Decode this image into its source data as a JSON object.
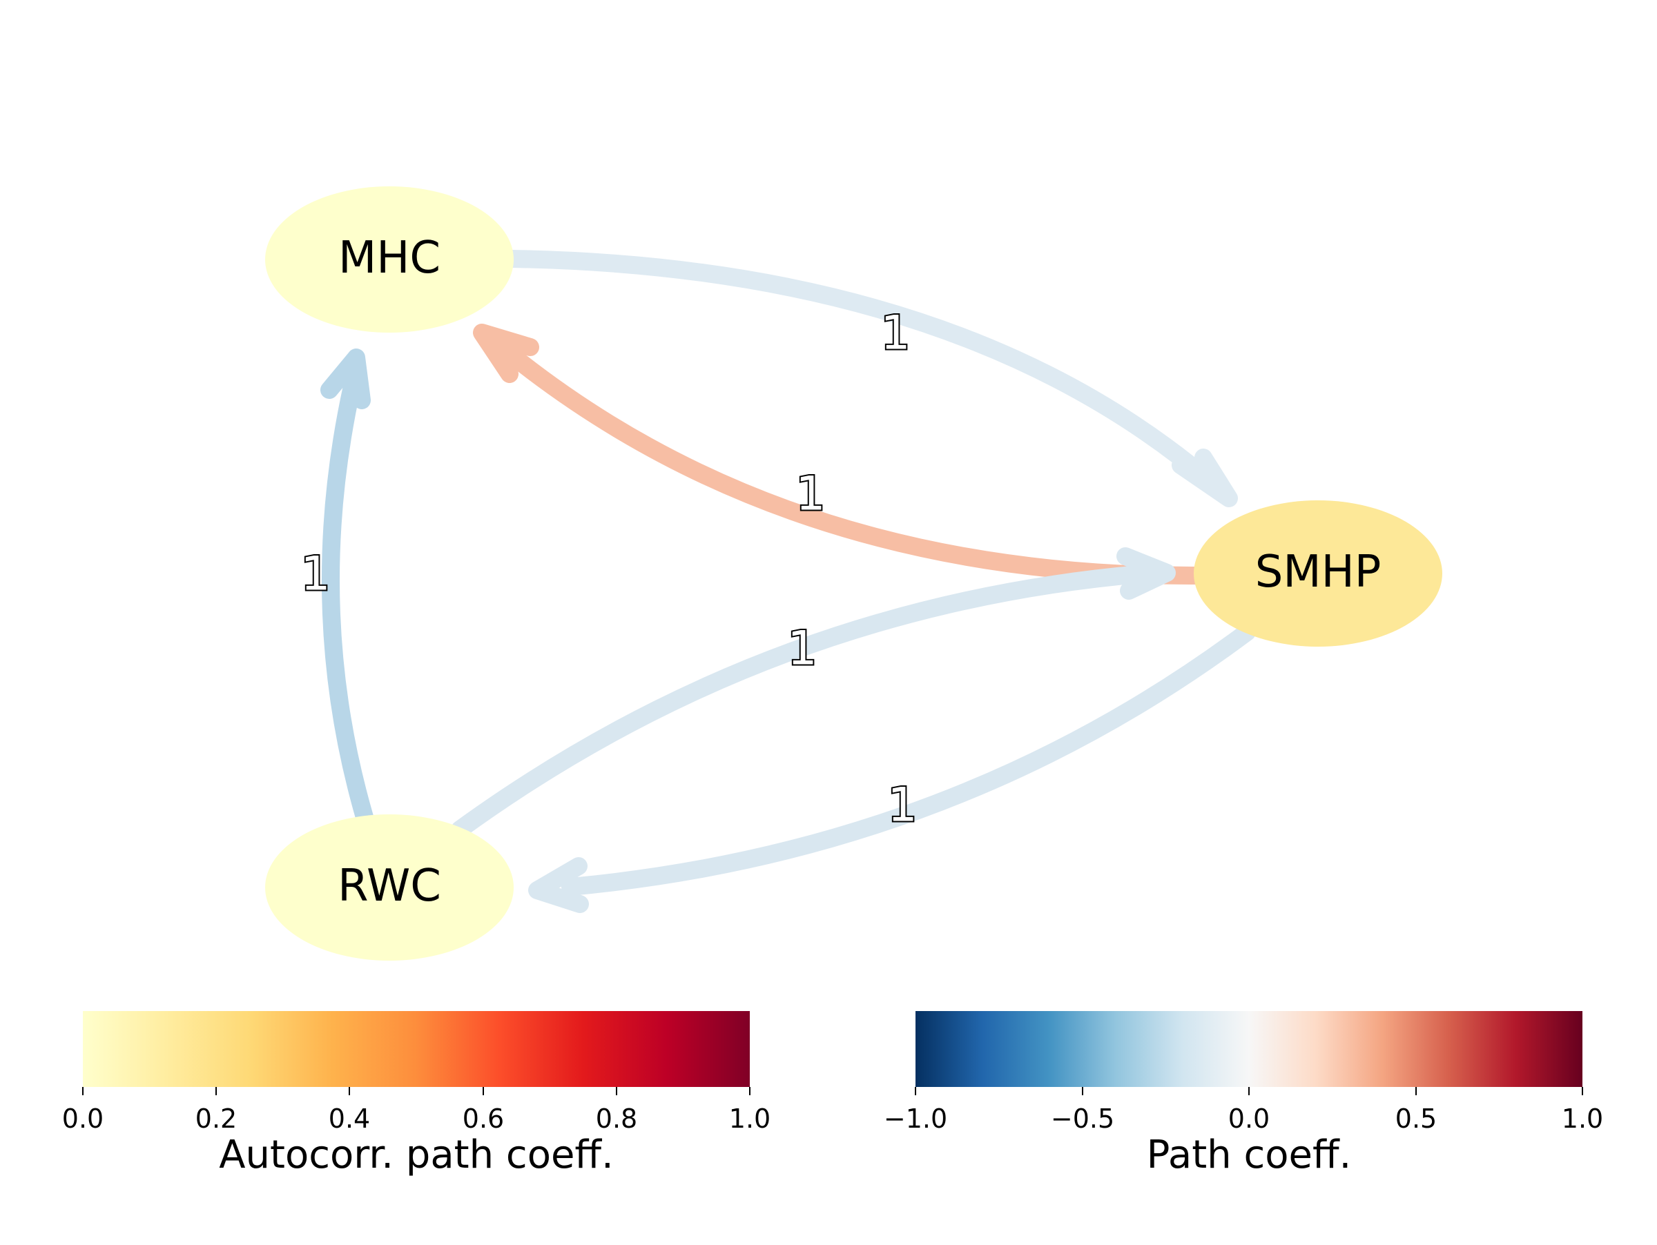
{
  "nodes": [
    {
      "id": "MHC",
      "label": "MHC",
      "color": "#feffcc"
    },
    {
      "id": "SMHP",
      "label": "SMHP",
      "color": "#fde898"
    },
    {
      "id": "RWC",
      "label": "RWC",
      "color": "#feffcc"
    }
  ],
  "edges": [
    {
      "from": "MHC",
      "to": "SMHP",
      "label": "1",
      "color": "#deeaf2"
    },
    {
      "from": "SMHP",
      "to": "MHC",
      "label": "1",
      "color": "#f7bea4"
    },
    {
      "from": "RWC",
      "to": "MHC",
      "label": "1",
      "color": "#b8d6e8"
    },
    {
      "from": "RWC",
      "to": "SMHP",
      "label": "1",
      "color": "#d9e7f0"
    },
    {
      "from": "SMHP",
      "to": "RWC",
      "label": "1",
      "color": "#d9e7f0"
    }
  ],
  "colorbars": {
    "autocorr": {
      "title": "Autocorr. path coeff.",
      "colormap": [
        "#ffffcc",
        "#ffeda0",
        "#fed976",
        "#feb24c",
        "#fd8d3c",
        "#fc4e2a",
        "#e31a1c",
        "#bd0026",
        "#800026"
      ],
      "ticks": [
        "0.0",
        "0.2",
        "0.4",
        "0.6",
        "0.8",
        "1.0"
      ]
    },
    "path": {
      "title": "Path coeff.",
      "colormap": [
        "#053061",
        "#2166ac",
        "#4393c3",
        "#92c5de",
        "#d1e5f0",
        "#f7f7f7",
        "#fddbc7",
        "#f4a582",
        "#d6604d",
        "#b2182b",
        "#67001f"
      ],
      "ticks": [
        "−1.0",
        "−0.5",
        "0.0",
        "0.5",
        "1.0"
      ]
    }
  }
}
